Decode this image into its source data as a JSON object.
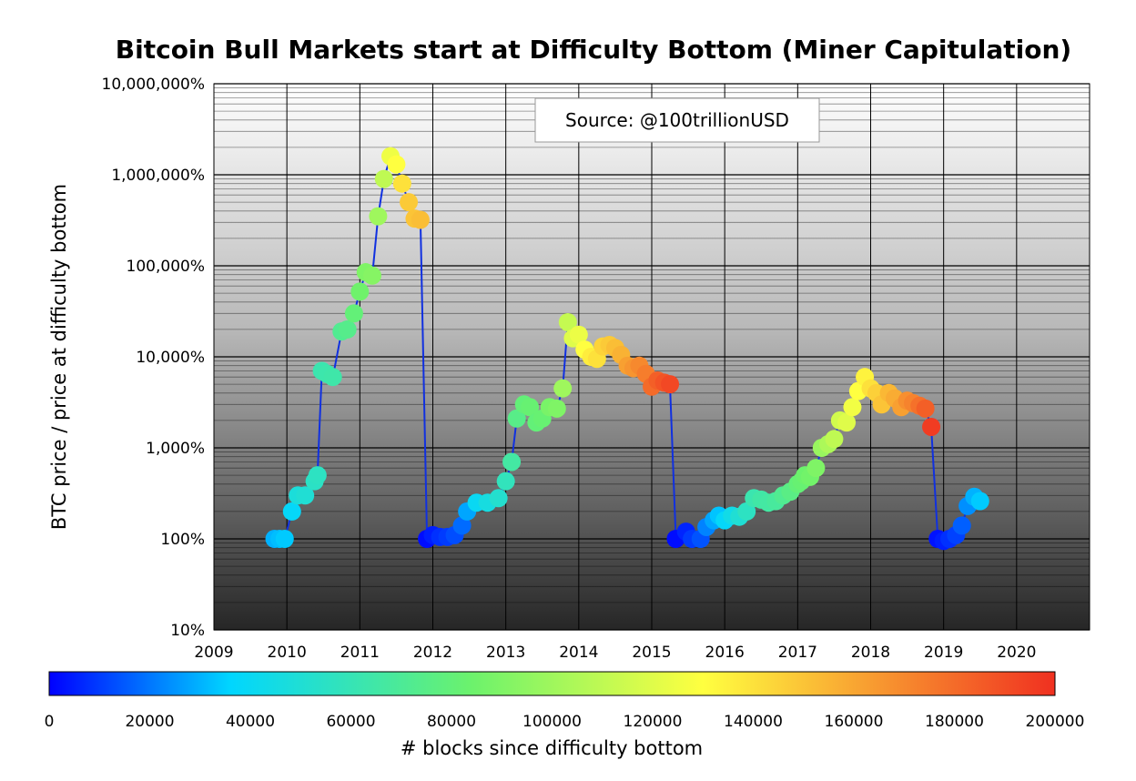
{
  "chart_data": {
    "type": "scatter",
    "title": "Bitcoin Bull Markets start at Difficulty Bottom (Miner Capitulation)",
    "annotation": "Source: @100trillionUSD",
    "ylabel": "BTC price / price at difficulty bottom",
    "xlabel": "",
    "colorbar_label": "# blocks since difficulty bottom",
    "y_scale": "log",
    "xlim": [
      2009,
      2021
    ],
    "ylim": [
      0.1,
      100000
    ],
    "x_ticks": [
      2009,
      2010,
      2011,
      2012,
      2013,
      2014,
      2015,
      2016,
      2017,
      2018,
      2019,
      2020
    ],
    "y_ticks": [
      {
        "value": 0.1,
        "label": "10%"
      },
      {
        "value": 1,
        "label": "100%"
      },
      {
        "value": 10,
        "label": "1,000%"
      },
      {
        "value": 100,
        "label": "10,000%"
      },
      {
        "value": 1000,
        "label": "100,000%"
      },
      {
        "value": 10000,
        "label": "1,000,000%"
      },
      {
        "value": 100000,
        "label": "10,000,000%"
      }
    ],
    "colorbar_range": [
      0,
      200000
    ],
    "colorbar_ticks": [
      "0",
      "20000",
      "40000",
      "60000",
      "80000",
      "100000",
      "120000",
      "140000",
      "160000",
      "180000",
      "200000"
    ],
    "colormap": [
      "#0000ff",
      "#00d6ff",
      "#6cf26c",
      "#ffff40",
      "#f03020"
    ],
    "line_color": "#1030e0",
    "grid": true,
    "points": [
      {
        "x": 2009.83,
        "y": 1.0,
        "blocks": 30000
      },
      {
        "x": 2009.9,
        "y": 1.0,
        "blocks": 32000
      },
      {
        "x": 2009.97,
        "y": 1.0,
        "blocks": 34000
      },
      {
        "x": 2010.07,
        "y": 2.0,
        "blocks": 38000
      },
      {
        "x": 2010.15,
        "y": 3.0,
        "blocks": 48000
      },
      {
        "x": 2010.25,
        "y": 3.0,
        "blocks": 50000
      },
      {
        "x": 2010.38,
        "y": 4.3,
        "blocks": 55000
      },
      {
        "x": 2010.42,
        "y": 5.0,
        "blocks": 56000
      },
      {
        "x": 2010.48,
        "y": 70.0,
        "blocks": 62000
      },
      {
        "x": 2010.55,
        "y": 65.0,
        "blocks": 63000
      },
      {
        "x": 2010.63,
        "y": 60.0,
        "blocks": 64000
      },
      {
        "x": 2010.75,
        "y": 190.0,
        "blocks": 72000
      },
      {
        "x": 2010.83,
        "y": 200.0,
        "blocks": 74000
      },
      {
        "x": 2010.92,
        "y": 300.0,
        "blocks": 80000
      },
      {
        "x": 2011.0,
        "y": 520.0,
        "blocks": 85000
      },
      {
        "x": 2011.08,
        "y": 850.0,
        "blocks": 90000
      },
      {
        "x": 2011.17,
        "y": 780.0,
        "blocks": 92000
      },
      {
        "x": 2011.25,
        "y": 3500.0,
        "blocks": 100000
      },
      {
        "x": 2011.33,
        "y": 9000.0,
        "blocks": 110000
      },
      {
        "x": 2011.42,
        "y": 16000.0,
        "blocks": 125000
      },
      {
        "x": 2011.5,
        "y": 13000.0,
        "blocks": 130000
      },
      {
        "x": 2011.58,
        "y": 8000.0,
        "blocks": 140000
      },
      {
        "x": 2011.67,
        "y": 5000.0,
        "blocks": 148000
      },
      {
        "x": 2011.75,
        "y": 3300.0,
        "blocks": 150000
      },
      {
        "x": 2011.83,
        "y": 3200.0,
        "blocks": 152000
      },
      {
        "x": 2011.92,
        "y": 1.0,
        "blocks": 2000
      },
      {
        "x": 2012.0,
        "y": 1.1,
        "blocks": 5000
      },
      {
        "x": 2012.1,
        "y": 1.05,
        "blocks": 8000
      },
      {
        "x": 2012.2,
        "y": 1.05,
        "blocks": 10000
      },
      {
        "x": 2012.3,
        "y": 1.1,
        "blocks": 13000
      },
      {
        "x": 2012.4,
        "y": 1.4,
        "blocks": 18000
      },
      {
        "x": 2012.47,
        "y": 2.0,
        "blocks": 28000
      },
      {
        "x": 2012.6,
        "y": 2.5,
        "blocks": 40000
      },
      {
        "x": 2012.75,
        "y": 2.5,
        "blocks": 46000
      },
      {
        "x": 2012.9,
        "y": 2.8,
        "blocks": 52000
      },
      {
        "x": 2013.0,
        "y": 4.3,
        "blocks": 58000
      },
      {
        "x": 2013.08,
        "y": 7.0,
        "blocks": 66000
      },
      {
        "x": 2013.15,
        "y": 21.0,
        "blocks": 75000
      },
      {
        "x": 2013.25,
        "y": 30.0,
        "blocks": 80000
      },
      {
        "x": 2013.33,
        "y": 28.0,
        "blocks": 82000
      },
      {
        "x": 2013.42,
        "y": 19.0,
        "blocks": 80000
      },
      {
        "x": 2013.5,
        "y": 21.0,
        "blocks": 82000
      },
      {
        "x": 2013.6,
        "y": 28.0,
        "blocks": 88000
      },
      {
        "x": 2013.7,
        "y": 27.0,
        "blocks": 90000
      },
      {
        "x": 2013.78,
        "y": 45.0,
        "blocks": 100000
      },
      {
        "x": 2013.85,
        "y": 240.0,
        "blocks": 112000
      },
      {
        "x": 2013.92,
        "y": 160.0,
        "blocks": 120000
      },
      {
        "x": 2014.0,
        "y": 175.0,
        "blocks": 124000
      },
      {
        "x": 2014.08,
        "y": 120.0,
        "blocks": 130000
      },
      {
        "x": 2014.17,
        "y": 100.0,
        "blocks": 136000
      },
      {
        "x": 2014.25,
        "y": 95.0,
        "blocks": 140000
      },
      {
        "x": 2014.33,
        "y": 130.0,
        "blocks": 145000
      },
      {
        "x": 2014.42,
        "y": 135.0,
        "blocks": 148000
      },
      {
        "x": 2014.5,
        "y": 125.0,
        "blocks": 152000
      },
      {
        "x": 2014.58,
        "y": 105.0,
        "blocks": 156000
      },
      {
        "x": 2014.67,
        "y": 80.0,
        "blocks": 162000
      },
      {
        "x": 2014.75,
        "y": 75.0,
        "blocks": 166000
      },
      {
        "x": 2014.83,
        "y": 80.0,
        "blocks": 170000
      },
      {
        "x": 2014.92,
        "y": 65.0,
        "blocks": 174000
      },
      {
        "x": 2015.0,
        "y": 47.0,
        "blocks": 180000
      },
      {
        "x": 2015.08,
        "y": 55.0,
        "blocks": 184000
      },
      {
        "x": 2015.17,
        "y": 52.0,
        "blocks": 188000
      },
      {
        "x": 2015.25,
        "y": 50.0,
        "blocks": 192000
      },
      {
        "x": 2015.33,
        "y": 1.0,
        "blocks": 2000
      },
      {
        "x": 2015.47,
        "y": 1.2,
        "blocks": 6000
      },
      {
        "x": 2015.55,
        "y": 1.0,
        "blocks": 10000
      },
      {
        "x": 2015.67,
        "y": 1.0,
        "blocks": 14000
      },
      {
        "x": 2015.75,
        "y": 1.35,
        "blocks": 22000
      },
      {
        "x": 2015.85,
        "y": 1.6,
        "blocks": 28000
      },
      {
        "x": 2015.92,
        "y": 1.8,
        "blocks": 33000
      },
      {
        "x": 2016.0,
        "y": 1.6,
        "blocks": 38000
      },
      {
        "x": 2016.1,
        "y": 1.8,
        "blocks": 44000
      },
      {
        "x": 2016.2,
        "y": 1.75,
        "blocks": 50000
      },
      {
        "x": 2016.3,
        "y": 2.0,
        "blocks": 56000
      },
      {
        "x": 2016.4,
        "y": 2.8,
        "blocks": 62000
      },
      {
        "x": 2016.5,
        "y": 2.7,
        "blocks": 65000
      },
      {
        "x": 2016.6,
        "y": 2.5,
        "blocks": 66000
      },
      {
        "x": 2016.7,
        "y": 2.6,
        "blocks": 68000
      },
      {
        "x": 2016.8,
        "y": 3.0,
        "blocks": 72000
      },
      {
        "x": 2016.9,
        "y": 3.3,
        "blocks": 76000
      },
      {
        "x": 2017.0,
        "y": 4.0,
        "blocks": 80000
      },
      {
        "x": 2017.05,
        "y": 4.3,
        "blocks": 82000
      },
      {
        "x": 2017.1,
        "y": 5.0,
        "blocks": 84000
      },
      {
        "x": 2017.17,
        "y": 4.8,
        "blocks": 86000
      },
      {
        "x": 2017.25,
        "y": 6.0,
        "blocks": 90000
      },
      {
        "x": 2017.33,
        "y": 10.0,
        "blocks": 98000
      },
      {
        "x": 2017.42,
        "y": 11.0,
        "blocks": 104000
      },
      {
        "x": 2017.5,
        "y": 12.5,
        "blocks": 110000
      },
      {
        "x": 2017.58,
        "y": 20.0,
        "blocks": 116000
      },
      {
        "x": 2017.67,
        "y": 19.0,
        "blocks": 120000
      },
      {
        "x": 2017.75,
        "y": 28.0,
        "blocks": 126000
      },
      {
        "x": 2017.83,
        "y": 42.0,
        "blocks": 130000
      },
      {
        "x": 2017.92,
        "y": 60.0,
        "blocks": 134000
      },
      {
        "x": 2018.0,
        "y": 45.0,
        "blocks": 140000
      },
      {
        "x": 2018.08,
        "y": 40.0,
        "blocks": 146000
      },
      {
        "x": 2018.15,
        "y": 30.0,
        "blocks": 150000
      },
      {
        "x": 2018.25,
        "y": 40.0,
        "blocks": 154000
      },
      {
        "x": 2018.33,
        "y": 35.0,
        "blocks": 158000
      },
      {
        "x": 2018.42,
        "y": 28.0,
        "blocks": 162000
      },
      {
        "x": 2018.5,
        "y": 33.0,
        "blocks": 168000
      },
      {
        "x": 2018.58,
        "y": 31.0,
        "blocks": 172000
      },
      {
        "x": 2018.67,
        "y": 29.0,
        "blocks": 178000
      },
      {
        "x": 2018.75,
        "y": 27.0,
        "blocks": 184000
      },
      {
        "x": 2018.83,
        "y": 17.0,
        "blocks": 196000
      },
      {
        "x": 2018.92,
        "y": 1.0,
        "blocks": 3000
      },
      {
        "x": 2019.0,
        "y": 0.95,
        "blocks": 5000
      },
      {
        "x": 2019.08,
        "y": 1.0,
        "blocks": 8000
      },
      {
        "x": 2019.17,
        "y": 1.1,
        "blocks": 11000
      },
      {
        "x": 2019.25,
        "y": 1.4,
        "blocks": 16000
      },
      {
        "x": 2019.33,
        "y": 2.3,
        "blocks": 24000
      },
      {
        "x": 2019.42,
        "y": 2.9,
        "blocks": 30000
      },
      {
        "x": 2019.5,
        "y": 2.6,
        "blocks": 34000
      }
    ]
  }
}
